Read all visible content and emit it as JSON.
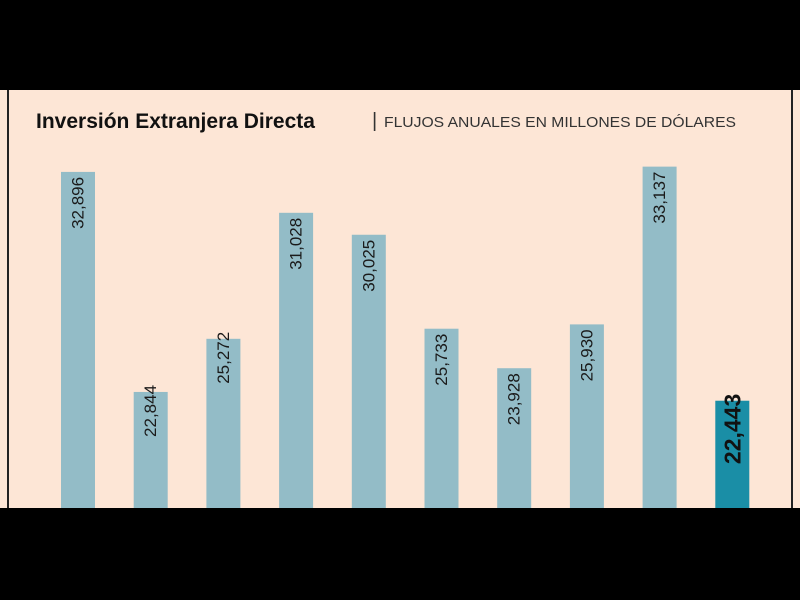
{
  "chart_data": {
    "type": "bar",
    "title": "Inversión Extranjera Directa",
    "separator": "|",
    "subtitle": "FLUJOS ANUALES EN MILLONES DE DÓLARES",
    "xlabel": "",
    "ylabel": "",
    "ylim": [
      0,
      34000
    ],
    "grid": false,
    "legend": "none",
    "values": [
      32896,
      22844,
      25272,
      31028,
      30025,
      25733,
      23928,
      25930,
      33137,
      22443
    ],
    "labels": [
      "32,896",
      "22,844",
      "25,272",
      "31,028",
      "30,025",
      "25,733",
      "23,928",
      "25,930",
      "33,137",
      "22,443"
    ],
    "label_position": [
      "inside",
      "above",
      "above",
      "inside",
      "inside",
      "inside",
      "inside",
      "inside",
      "inside",
      "above"
    ],
    "highlight_index": 9,
    "colors": {
      "bar": "#93bcc7",
      "highlight": "#1a8ea6",
      "background": "#fde6d6"
    }
  }
}
